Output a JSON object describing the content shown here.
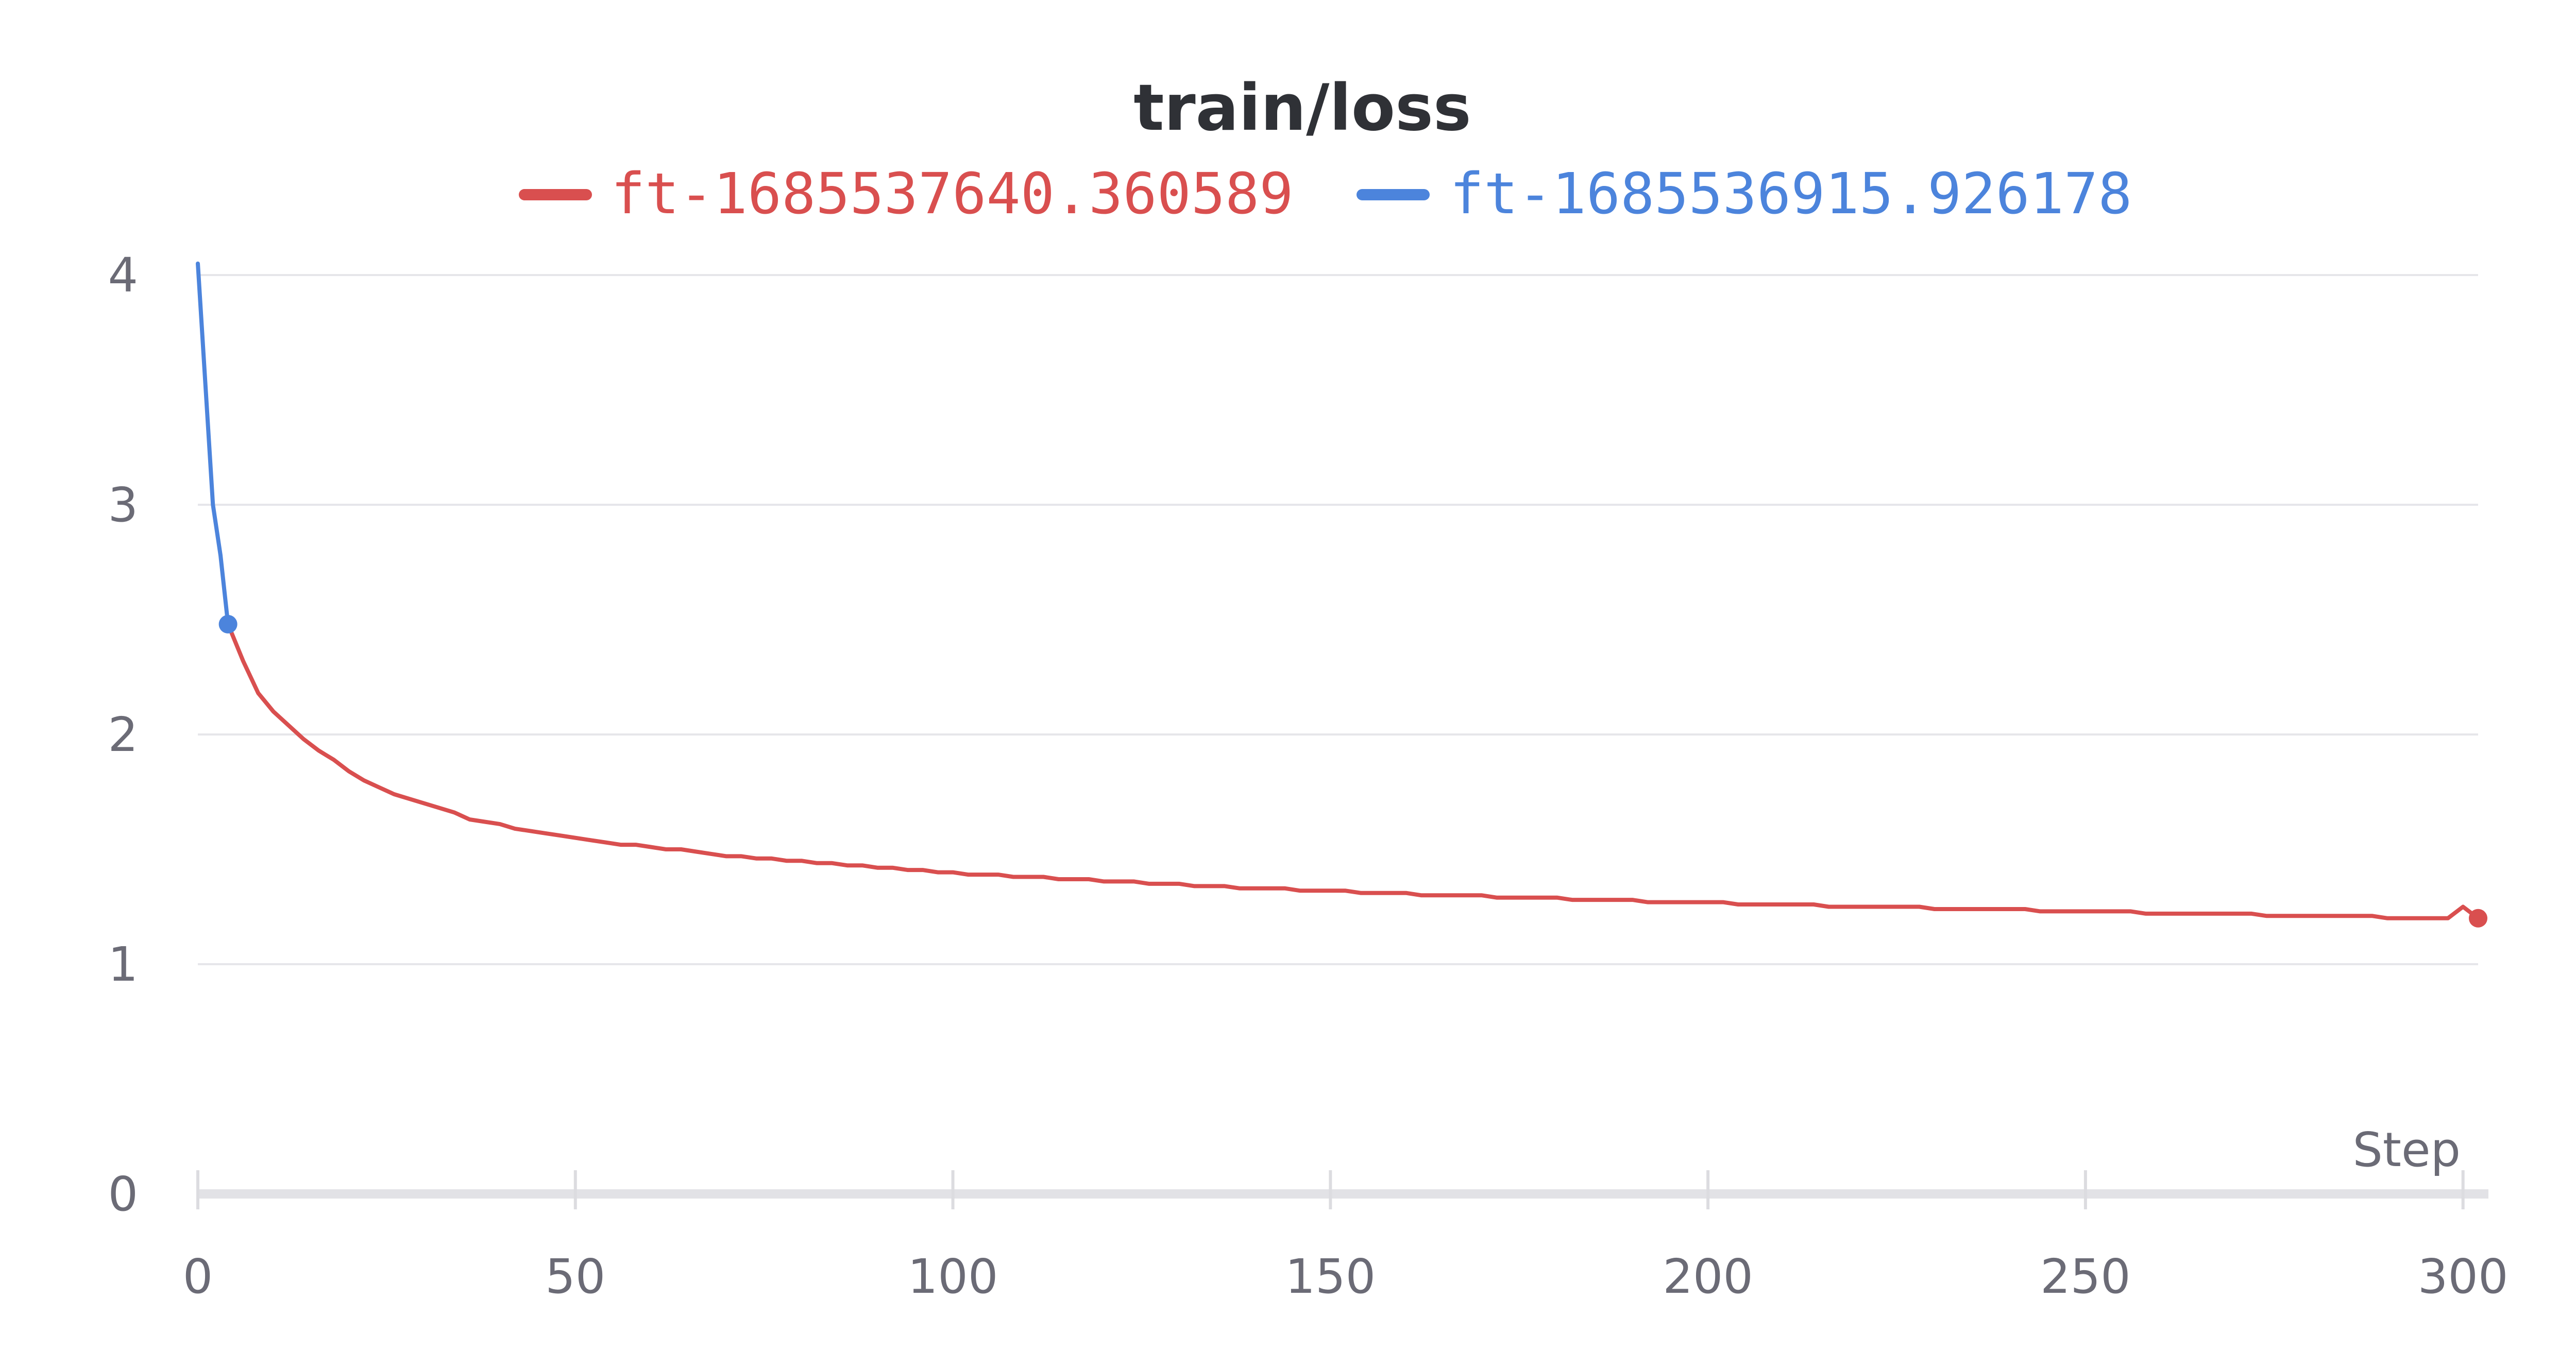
{
  "chart_data": {
    "type": "line",
    "title": "train/loss",
    "xlabel": "Step",
    "ylabel": "",
    "xlim": [
      0,
      302
    ],
    "ylim": [
      0,
      4
    ],
    "x_ticks": [
      "0",
      "50",
      "100",
      "150",
      "200",
      "250",
      "300"
    ],
    "y_ticks": [
      "0",
      "1",
      "2",
      "3",
      "4"
    ],
    "grid": true,
    "legend_position": "top",
    "series": [
      {
        "name": "ft-1685537640.360589",
        "color": "#d94f4f",
        "end_marker": true,
        "points": [
          [
            4,
            2.48
          ],
          [
            6,
            2.32
          ],
          [
            8,
            2.18
          ],
          [
            10,
            2.1
          ],
          [
            12,
            2.04
          ],
          [
            14,
            1.98
          ],
          [
            16,
            1.93
          ],
          [
            18,
            1.89
          ],
          [
            20,
            1.84
          ],
          [
            22,
            1.8
          ],
          [
            24,
            1.77
          ],
          [
            26,
            1.74
          ],
          [
            28,
            1.72
          ],
          [
            30,
            1.7
          ],
          [
            32,
            1.68
          ],
          [
            34,
            1.66
          ],
          [
            36,
            1.63
          ],
          [
            38,
            1.62
          ],
          [
            40,
            1.61
          ],
          [
            42,
            1.59
          ],
          [
            44,
            1.58
          ],
          [
            46,
            1.57
          ],
          [
            48,
            1.56
          ],
          [
            50,
            1.55
          ],
          [
            52,
            1.54
          ],
          [
            54,
            1.53
          ],
          [
            56,
            1.52
          ],
          [
            58,
            1.52
          ],
          [
            60,
            1.51
          ],
          [
            62,
            1.5
          ],
          [
            64,
            1.5
          ],
          [
            66,
            1.49
          ],
          [
            68,
            1.48
          ],
          [
            70,
            1.47
          ],
          [
            72,
            1.47
          ],
          [
            74,
            1.46
          ],
          [
            76,
            1.46
          ],
          [
            78,
            1.45
          ],
          [
            80,
            1.45
          ],
          [
            82,
            1.44
          ],
          [
            84,
            1.44
          ],
          [
            86,
            1.43
          ],
          [
            88,
            1.43
          ],
          [
            90,
            1.42
          ],
          [
            92,
            1.42
          ],
          [
            94,
            1.41
          ],
          [
            96,
            1.41
          ],
          [
            98,
            1.4
          ],
          [
            100,
            1.4
          ],
          [
            102,
            1.39
          ],
          [
            104,
            1.39
          ],
          [
            106,
            1.39
          ],
          [
            108,
            1.38
          ],
          [
            110,
            1.38
          ],
          [
            112,
            1.38
          ],
          [
            114,
            1.37
          ],
          [
            116,
            1.37
          ],
          [
            118,
            1.37
          ],
          [
            120,
            1.36
          ],
          [
            122,
            1.36
          ],
          [
            124,
            1.36
          ],
          [
            126,
            1.35
          ],
          [
            128,
            1.35
          ],
          [
            130,
            1.35
          ],
          [
            132,
            1.34
          ],
          [
            134,
            1.34
          ],
          [
            136,
            1.34
          ],
          [
            138,
            1.33
          ],
          [
            140,
            1.33
          ],
          [
            142,
            1.33
          ],
          [
            144,
            1.33
          ],
          [
            146,
            1.32
          ],
          [
            148,
            1.32
          ],
          [
            150,
            1.32
          ],
          [
            152,
            1.32
          ],
          [
            154,
            1.31
          ],
          [
            156,
            1.31
          ],
          [
            158,
            1.31
          ],
          [
            160,
            1.31
          ],
          [
            162,
            1.3
          ],
          [
            164,
            1.3
          ],
          [
            166,
            1.3
          ],
          [
            168,
            1.3
          ],
          [
            170,
            1.3
          ],
          [
            172,
            1.29
          ],
          [
            174,
            1.29
          ],
          [
            176,
            1.29
          ],
          [
            178,
            1.29
          ],
          [
            180,
            1.29
          ],
          [
            182,
            1.28
          ],
          [
            184,
            1.28
          ],
          [
            186,
            1.28
          ],
          [
            188,
            1.28
          ],
          [
            190,
            1.28
          ],
          [
            192,
            1.27
          ],
          [
            194,
            1.27
          ],
          [
            196,
            1.27
          ],
          [
            198,
            1.27
          ],
          [
            200,
            1.27
          ],
          [
            202,
            1.27
          ],
          [
            204,
            1.26
          ],
          [
            206,
            1.26
          ],
          [
            208,
            1.26
          ],
          [
            210,
            1.26
          ],
          [
            212,
            1.26
          ],
          [
            214,
            1.26
          ],
          [
            216,
            1.25
          ],
          [
            218,
            1.25
          ],
          [
            220,
            1.25
          ],
          [
            222,
            1.25
          ],
          [
            224,
            1.25
          ],
          [
            226,
            1.25
          ],
          [
            228,
            1.25
          ],
          [
            230,
            1.24
          ],
          [
            232,
            1.24
          ],
          [
            234,
            1.24
          ],
          [
            236,
            1.24
          ],
          [
            238,
            1.24
          ],
          [
            240,
            1.24
          ],
          [
            242,
            1.24
          ],
          [
            244,
            1.23
          ],
          [
            246,
            1.23
          ],
          [
            248,
            1.23
          ],
          [
            250,
            1.23
          ],
          [
            252,
            1.23
          ],
          [
            254,
            1.23
          ],
          [
            256,
            1.23
          ],
          [
            258,
            1.22
          ],
          [
            260,
            1.22
          ],
          [
            262,
            1.22
          ],
          [
            264,
            1.22
          ],
          [
            266,
            1.22
          ],
          [
            268,
            1.22
          ],
          [
            270,
            1.22
          ],
          [
            272,
            1.22
          ],
          [
            274,
            1.21
          ],
          [
            276,
            1.21
          ],
          [
            278,
            1.21
          ],
          [
            280,
            1.21
          ],
          [
            282,
            1.21
          ],
          [
            284,
            1.21
          ],
          [
            286,
            1.21
          ],
          [
            288,
            1.21
          ],
          [
            290,
            1.2
          ],
          [
            292,
            1.2
          ],
          [
            294,
            1.2
          ],
          [
            296,
            1.2
          ],
          [
            298,
            1.2
          ],
          [
            300,
            1.25
          ],
          [
            302,
            1.2
          ]
        ]
      },
      {
        "name": "ft-1685536915.926178",
        "color": "#4c84dc",
        "end_marker": true,
        "points": [
          [
            0,
            4.05
          ],
          [
            2,
            3.0
          ],
          [
            3,
            2.78
          ],
          [
            4,
            2.48
          ]
        ]
      }
    ]
  }
}
